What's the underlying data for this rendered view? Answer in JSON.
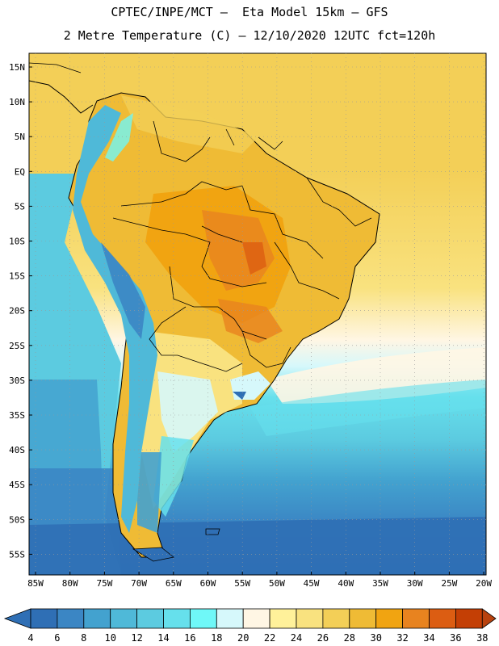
{
  "header": {
    "line1": "CPTEC/INPE/MCT –  Eta Model 15km – GFS",
    "line2": "2 Metre Temperature (C) – 12/10/2020 12UTC fct=120h"
  },
  "map": {
    "region": "South America",
    "lat_labels": [
      "15N",
      "10N",
      "5N",
      "EQ",
      "5S",
      "10S",
      "15S",
      "20S",
      "25S",
      "30S",
      "35S",
      "40S",
      "45S",
      "50S",
      "55S"
    ],
    "lon_labels": [
      "85W",
      "80W",
      "75W",
      "70W",
      "65W",
      "60W",
      "55W",
      "50W",
      "45W",
      "40W",
      "35W",
      "30W",
      "25W",
      "20W"
    ]
  },
  "colorbar": {
    "labels": [
      "4",
      "6",
      "8",
      "10",
      "12",
      "14",
      "16",
      "18",
      "20",
      "22",
      "24",
      "26",
      "28",
      "30",
      "32",
      "34",
      "36",
      "38"
    ],
    "colors": [
      "#2f6fb5",
      "#3b86c4",
      "#43a2cf",
      "#4fb9d8",
      "#5ccbe0",
      "#66e0ec",
      "#6ff8f8",
      "#d6f8fb",
      "#fff6e4",
      "#fff19a",
      "#f9e27f",
      "#f3cf57",
      "#efbb35",
      "#f1a411",
      "#e8831f",
      "#dc5d12",
      "#c43f05"
    ],
    "low_arrow_color": "#2f6fb5",
    "high_arrow_color": "#b8420e"
  }
}
